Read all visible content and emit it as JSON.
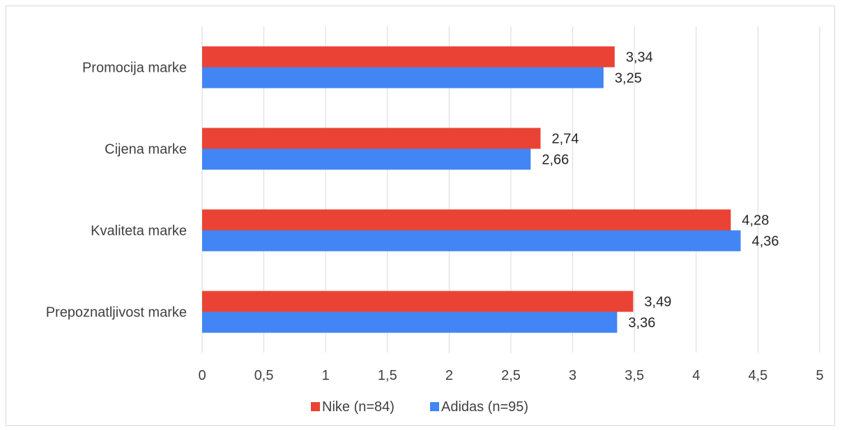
{
  "chart_data": {
    "type": "bar",
    "orientation": "horizontal",
    "title": "",
    "xlabel": "",
    "ylabel": "",
    "categories": [
      "Promocija marke",
      "Cijena marke",
      "Kvaliteta marke",
      "Prepoznatljivost marke"
    ],
    "series": [
      {
        "name": "Nike (n=84)",
        "color": "#EA4335",
        "values": [
          3.34,
          2.74,
          4.28,
          3.49
        ],
        "labels": [
          "3,34",
          "2,74",
          "4,28",
          "3,49"
        ]
      },
      {
        "name": "Adidas (n=95)",
        "color": "#4285F4",
        "values": [
          3.25,
          2.66,
          4.36,
          3.36
        ],
        "labels": [
          "3,25",
          "2,66",
          "4,36",
          "3,36"
        ]
      }
    ],
    "xlim": [
      0,
      5
    ],
    "ticks": [
      0,
      0.5,
      1,
      1.5,
      2,
      2.5,
      3,
      3.5,
      4,
      4.5,
      5
    ],
    "tick_labels": [
      "0",
      "0,5",
      "1",
      "1,5",
      "2",
      "2,5",
      "3",
      "3,5",
      "4",
      "4,5",
      "5"
    ],
    "grid": "vertical",
    "legend_position": "bottom"
  }
}
